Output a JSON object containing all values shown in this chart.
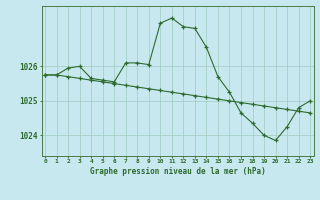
{
  "line1": {
    "x": [
      0,
      1,
      2,
      3,
      4,
      5,
      6,
      7,
      8,
      9,
      10,
      11,
      12,
      13,
      14,
      15,
      16,
      17,
      18,
      19,
      20,
      21,
      22,
      23
    ],
    "y": [
      1025.75,
      1025.75,
      1025.95,
      1026.0,
      1025.65,
      1025.6,
      1025.55,
      1026.1,
      1026.1,
      1026.05,
      1027.25,
      1027.4,
      1027.15,
      1027.1,
      1026.55,
      1025.7,
      1025.25,
      1024.65,
      1024.35,
      1024.0,
      1023.85,
      1024.25,
      1024.8,
      1025.0
    ]
  },
  "line2": {
    "x": [
      0,
      1,
      2,
      3,
      4,
      5,
      6,
      7,
      8,
      9,
      10,
      11,
      12,
      13,
      14,
      15,
      16,
      17,
      18,
      19,
      20,
      21,
      22,
      23
    ],
    "y": [
      1025.75,
      1025.75,
      1025.7,
      1025.65,
      1025.6,
      1025.55,
      1025.5,
      1025.45,
      1025.4,
      1025.35,
      1025.3,
      1025.25,
      1025.2,
      1025.15,
      1025.1,
      1025.05,
      1025.0,
      1024.95,
      1024.9,
      1024.85,
      1024.8,
      1024.75,
      1024.7,
      1024.65
    ]
  },
  "line_color": "#2d6a2d",
  "bg_color": "#c8e8f0",
  "grid_color": "#a0ccc0",
  "title": "Graphe pression niveau de la mer (hPa)",
  "yticks": [
    1024,
    1025,
    1026
  ],
  "ylim": [
    1023.4,
    1027.75
  ],
  "xlim": [
    -0.3,
    23.3
  ]
}
